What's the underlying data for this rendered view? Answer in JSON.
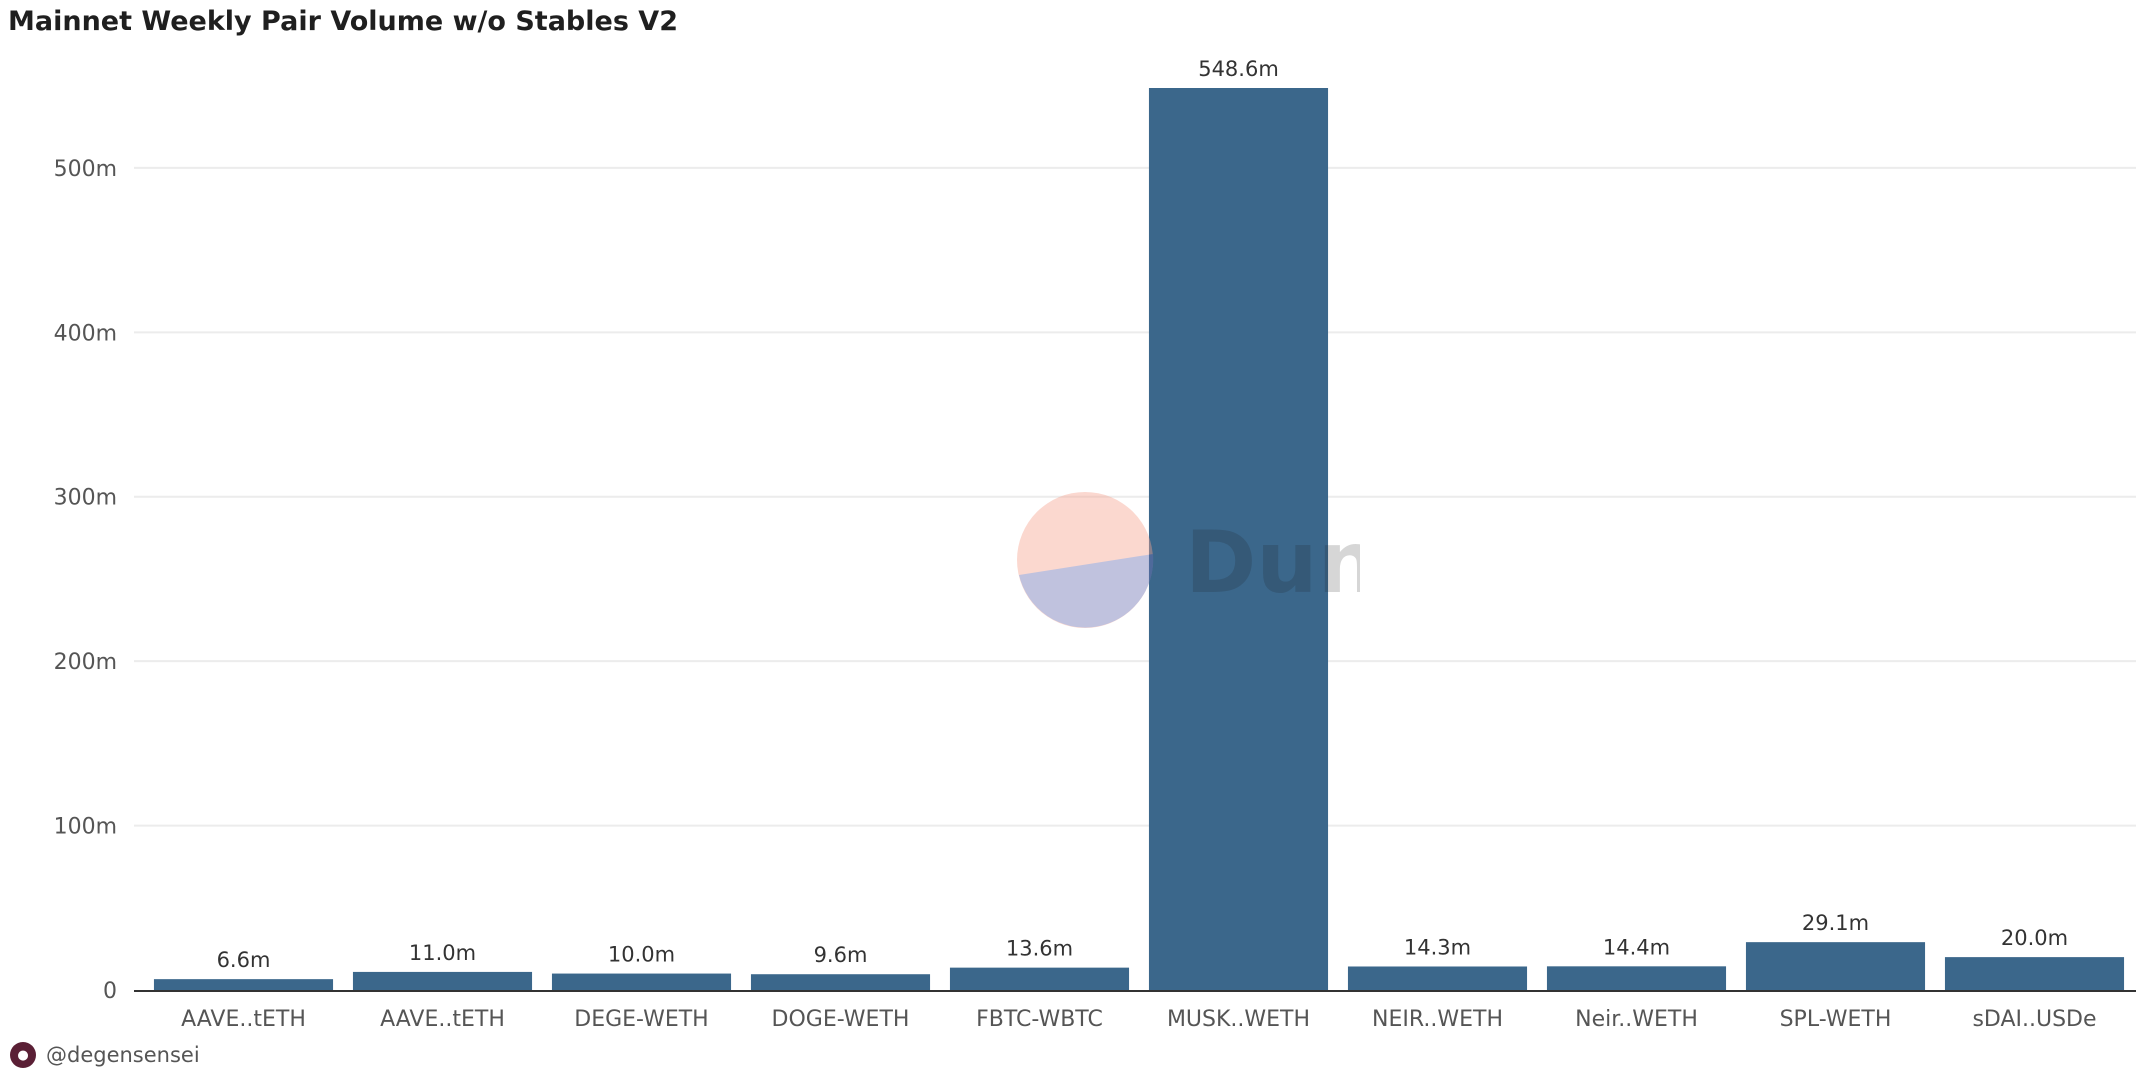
{
  "title": "Mainnet Weekly Pair Volume w/o Stables V2",
  "author": "@degensensei",
  "watermark": "Dune",
  "colors": {
    "bar": "#3b678b",
    "grid": "#ececec",
    "axis": "#333333",
    "tick_text": "#555555",
    "label_text": "#333333"
  },
  "chart_data": {
    "type": "bar",
    "title": "Mainnet Weekly Pair Volume w/o Stables V2",
    "xlabel": "",
    "ylabel": "",
    "categories": [
      "AAVE..tETH",
      "AAVE..tETH",
      "DEGE-WETH",
      "DOGE-WETH",
      "FBTC-WBTC",
      "MUSK..WETH",
      "NEIR..WETH",
      "Neir..WETH",
      "SPL-WETH",
      "sDAI..USDe"
    ],
    "values": [
      6.6,
      11.0,
      10.0,
      9.6,
      13.6,
      548.6,
      14.3,
      14.4,
      29.1,
      20.0
    ],
    "data_labels": [
      "6.6m",
      "11.0m",
      "10.0m",
      "9.6m",
      "13.6m",
      "548.6m",
      "14.3m",
      "14.4m",
      "29.1m",
      "20.0m"
    ],
    "unit": "m",
    "ylim": [
      0,
      548.6
    ],
    "yticks": [
      0,
      100,
      200,
      300,
      400,
      500
    ],
    "ytick_labels": [
      "0",
      "100m",
      "200m",
      "300m",
      "400m",
      "500m"
    ],
    "grid": true,
    "legend": "none"
  }
}
